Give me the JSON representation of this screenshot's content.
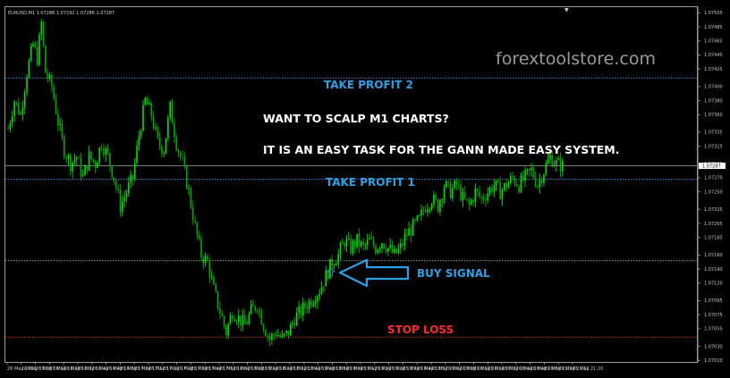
{
  "window": {
    "title": "EURUSD,M1  1.07286 1.07292 1.07286 1.07287"
  },
  "watermark": "forextoolstore.com",
  "annotations": {
    "headline": "WANT TO SCALP M1 CHARTS?",
    "subline": "IT IS AN EASY TASK FOR THE GANN MADE EASY SYSTEM.",
    "tp2": "TAKE PROFIT 2",
    "tp1": "TAKE PROFIT 1",
    "buy": "BUY SIGNAL",
    "sl": "STOP LOSS"
  },
  "colors": {
    "background": "#000000",
    "bull_candle": "#00e000",
    "bear_candle": "#00a800",
    "tp_line": "#3d7fc4",
    "sl_line": "#c03030",
    "sl_text": "#ff2a2a",
    "tp_text": "#2aa2e8",
    "entry_line": "#909090",
    "annotation_text": "#ffffff"
  },
  "chart_data": {
    "type": "candlestick",
    "symbol": "EURUSD",
    "timeframe": "M1",
    "current_price": "1.07287",
    "ylim": [
      1.07009,
      1.07513
    ],
    "y_ticks": [
      "1.07505",
      "1.07485",
      "1.07465",
      "1.07445",
      "1.07425",
      "1.07400",
      "1.07380",
      "1.07360",
      "1.07335",
      "1.07315",
      "1.07290",
      "1.07270",
      "1.07250",
      "1.07225",
      "1.07205",
      "1.07185",
      "1.07160",
      "1.07140",
      "1.07120",
      "1.07095",
      "1.07075",
      "1.07055",
      "1.07030",
      "1.07010"
    ],
    "x_ticks": [
      "26 May 2023",
      "26 May 16:08",
      "26 May 16:16",
      "26 May 16:24",
      "26 May 16:32",
      "26 May 16:40",
      "26 May 16:48",
      "26 May 16:56",
      "26 May 17:04",
      "26 May 17:12",
      "26 May 17:20",
      "26 May 17:28",
      "26 May 17:36",
      "26 May 17:44",
      "26 May 17:52",
      "26 May 18:00",
      "26 May 18:08",
      "26 May 18:16",
      "26 May 18:24",
      "26 May 18:32",
      "26 May 18:40",
      "26 May 18:48",
      "26 May 18:56",
      "26 May 19:04",
      "26 May 19:12",
      "26 May 19:20",
      "26 May 19:28",
      "26 May 19:36",
      "26 May 19:44",
      "26 May 19:52",
      "26 May 20:00",
      "26 May 20:08",
      "26 May 20:16",
      "26 May 20:24",
      "26 May 20:32",
      "26 May 20:40",
      "26 May 20:48",
      "26 May 20:56",
      "26 May 21:04",
      "26 May 21:12",
      "26 May 21:20"
    ],
    "levels": {
      "take_profit_2": 1.07412,
      "take_profit_1": 1.07268,
      "entry": 1.07152,
      "stop_loss": 1.07043,
      "current": 1.07287
    },
    "close_path": [
      [
        0,
        1.0734
      ],
      [
        3,
        1.0738
      ],
      [
        6,
        1.0736
      ],
      [
        9,
        1.0742
      ],
      [
        12,
        1.0746
      ],
      [
        14,
        1.0744
      ],
      [
        16,
        1.0749
      ],
      [
        18,
        1.0742
      ],
      [
        21,
        1.074
      ],
      [
        24,
        1.0735
      ],
      [
        27,
        1.0731
      ],
      [
        30,
        1.0729
      ],
      [
        33,
        1.073
      ],
      [
        36,
        1.0727
      ],
      [
        39,
        1.073
      ],
      [
        42,
        1.0729
      ],
      [
        45,
        1.0732
      ],
      [
        48,
        1.073
      ],
      [
        51,
        1.0727
      ],
      [
        54,
        1.0723
      ],
      [
        57,
        1.0725
      ],
      [
        60,
        1.0727
      ],
      [
        63,
        1.0733
      ],
      [
        66,
        1.0738
      ],
      [
        69,
        1.0736
      ],
      [
        72,
        1.0732
      ],
      [
        75,
        1.0731
      ],
      [
        78,
        1.0737
      ],
      [
        81,
        1.0732
      ],
      [
        84,
        1.0729
      ],
      [
        87,
        1.0725
      ],
      [
        90,
        1.072
      ],
      [
        93,
        1.0716
      ],
      [
        96,
        1.0715
      ],
      [
        99,
        1.0711
      ],
      [
        102,
        1.0708
      ],
      [
        105,
        1.0705
      ],
      [
        108,
        1.0708
      ],
      [
        111,
        1.0707
      ],
      [
        114,
        1.0706
      ],
      [
        117,
        1.0708
      ],
      [
        120,
        1.0709
      ],
      [
        123,
        1.0706
      ],
      [
        126,
        1.0704
      ],
      [
        129,
        1.0705
      ],
      [
        132,
        1.0704
      ],
      [
        135,
        1.0705
      ],
      [
        138,
        1.0707
      ],
      [
        141,
        1.0708
      ],
      [
        144,
        1.0709
      ],
      [
        147,
        1.071
      ],
      [
        150,
        1.0711
      ],
      [
        153,
        1.0713
      ],
      [
        156,
        1.0715
      ],
      [
        159,
        1.0716
      ],
      [
        162,
        1.0718
      ],
      [
        165,
        1.0717
      ],
      [
        168,
        1.0718
      ],
      [
        171,
        1.0717
      ],
      [
        174,
        1.0718
      ],
      [
        177,
        1.0717
      ],
      [
        180,
        1.0718
      ],
      [
        183,
        1.0717
      ],
      [
        186,
        1.0716
      ],
      [
        189,
        1.0717
      ],
      [
        192,
        1.0719
      ],
      [
        195,
        1.072
      ],
      [
        198,
        1.0721
      ],
      [
        201,
        1.0723
      ],
      [
        204,
        1.0724
      ],
      [
        207,
        1.0723
      ],
      [
        210,
        1.0726
      ],
      [
        213,
        1.0725
      ],
      [
        216,
        1.0726
      ],
      [
        219,
        1.0724
      ],
      [
        222,
        1.0723
      ],
      [
        225,
        1.0725
      ],
      [
        228,
        1.0724
      ],
      [
        231,
        1.0725
      ],
      [
        234,
        1.0726
      ],
      [
        237,
        1.0725
      ],
      [
        240,
        1.0726
      ],
      [
        243,
        1.0727
      ],
      [
        246,
        1.0726
      ],
      [
        249,
        1.0727
      ],
      [
        252,
        1.0728
      ],
      [
        255,
        1.0726
      ],
      [
        258,
        1.0728
      ],
      [
        261,
        1.073
      ],
      [
        264,
        1.0729
      ],
      [
        267,
        1.07287
      ]
    ],
    "bars_count": 268
  }
}
